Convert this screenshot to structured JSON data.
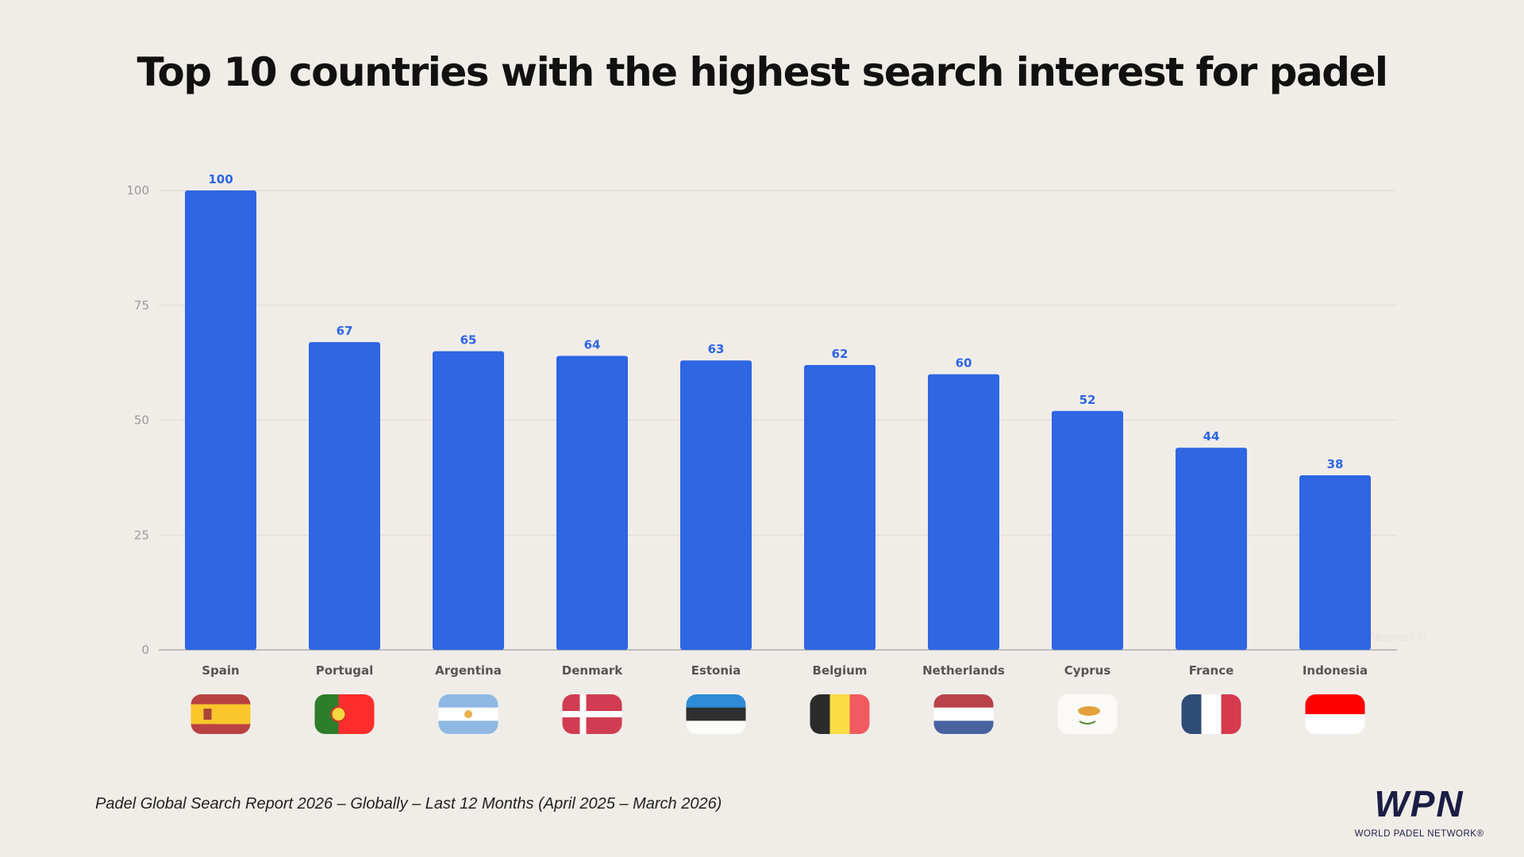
{
  "chart_data": {
    "type": "bar",
    "title": "Top 10 countries with the highest search interest for padel",
    "categories": [
      "Spain",
      "Portugal",
      "Argentina",
      "Denmark",
      "Estonia",
      "Belgium",
      "Netherlands",
      "Cyprus",
      "France",
      "Indonesia"
    ],
    "values": [
      100,
      67,
      65,
      64,
      63,
      62,
      60,
      52,
      44,
      38
    ],
    "ylim": [
      0,
      100
    ],
    "yticks": [
      0,
      25,
      50,
      75,
      100
    ],
    "grid": true,
    "xlabel": "",
    "ylabel": "",
    "bar_color": "#2e66e3",
    "label_color": "#2e66e3",
    "flags": [
      "spain-flag",
      "portugal-flag",
      "argentina-flag",
      "denmark-flag",
      "estonia-flag",
      "belgium-flag",
      "netherlands-flag",
      "cyprus-flag",
      "france-flag",
      "indonesia-flag"
    ]
  },
  "footnote": "Padel Global Search Report 2026 – Globally – Last 12 Months (April 2025 – March 2026)",
  "logo": {
    "mark": "WPN",
    "text": "WORLD PADEL NETWORK®"
  },
  "watermark": "World Padel Network®",
  "colors": {
    "background": "#f0ede8",
    "logo": "#1b1d45"
  }
}
